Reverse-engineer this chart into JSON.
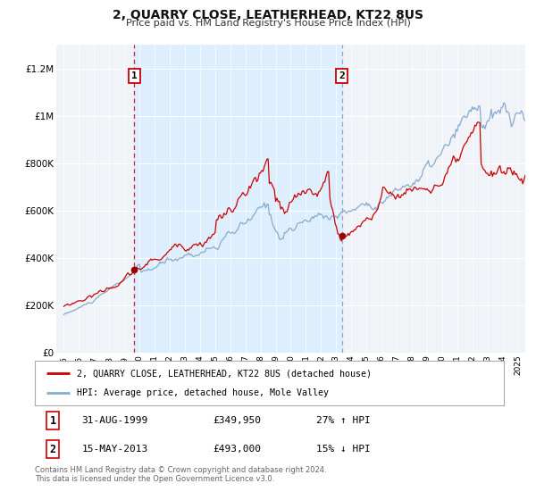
{
  "title": "2, QUARRY CLOSE, LEATHERHEAD, KT22 8US",
  "subtitle": "Price paid vs. HM Land Registry's House Price Index (HPI)",
  "legend_line1": "2, QUARRY CLOSE, LEATHERHEAD, KT22 8US (detached house)",
  "legend_line2": "HPI: Average price, detached house, Mole Valley",
  "annotation1_date": "31-AUG-1999",
  "annotation1_price": "£349,950",
  "annotation1_hpi": "27% ↑ HPI",
  "annotation2_date": "15-MAY-2013",
  "annotation2_price": "£493,000",
  "annotation2_hpi": "15% ↓ HPI",
  "footnote": "Contains HM Land Registry data © Crown copyright and database right 2024.\nThis data is licensed under the Open Government Licence v3.0.",
  "sale1_date_num": 1999.664,
  "sale1_price": 349950,
  "sale2_date_num": 2013.368,
  "sale2_price": 493000,
  "property_color": "#cc0000",
  "hpi_color": "#88aacc",
  "shading_color": "#ddeeff",
  "sale_dot_color": "#990000",
  "vline1_color": "#cc0000",
  "vline2_color": "#8899aa",
  "annotation_box_color": "#cc0000",
  "yticks": [
    0,
    200000,
    400000,
    600000,
    800000,
    1000000,
    1200000
  ],
  "ylabels": [
    "£0",
    "£200K",
    "£400K",
    "£600K",
    "£800K",
    "£1M",
    "£1.2M"
  ],
  "ylim_min": 0,
  "ylim_max": 1300000,
  "xlim_min": 1994.5,
  "xlim_max": 2025.5,
  "background_color": "#f0f4f8",
  "grid_color": "#ffffff"
}
